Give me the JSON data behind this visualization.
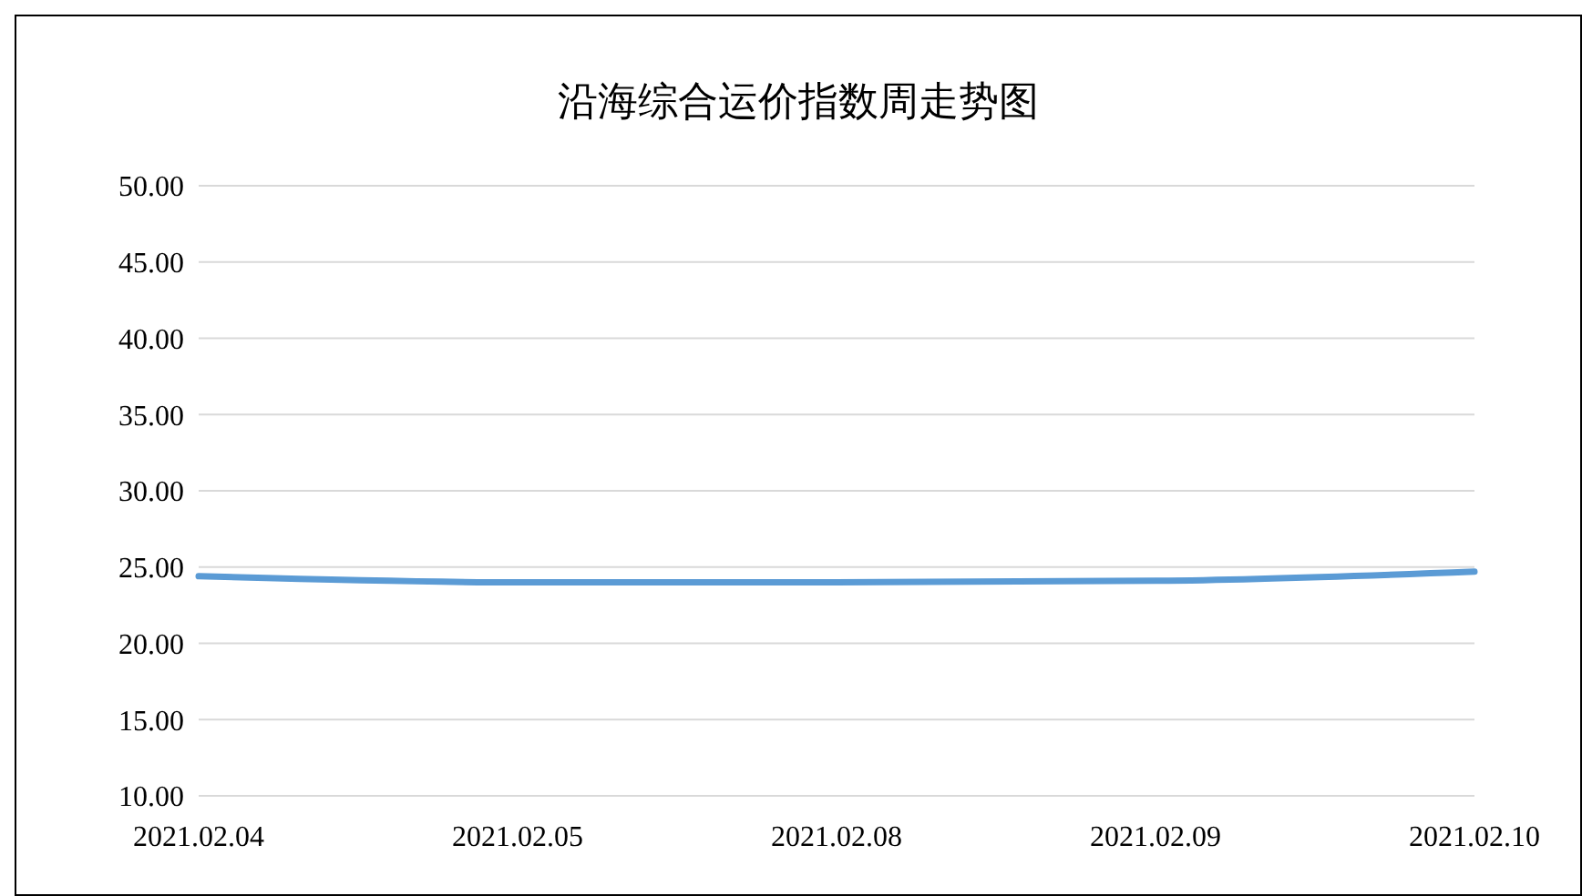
{
  "chart_data": {
    "type": "line",
    "title": "沿海综合运价指数周走势图",
    "categories": [
      "2021.02.04",
      "2021.02.05",
      "2021.02.08",
      "2021.02.09",
      "2021.02.10"
    ],
    "series": [
      {
        "color": "#5b9bd5",
        "values": [
          24.4,
          24.0,
          24.0,
          24.1,
          24.7
        ]
      }
    ],
    "ylim": [
      10,
      50
    ],
    "yticks": [
      {
        "value": 10,
        "label": "10.00"
      },
      {
        "value": 15,
        "label": "15.00"
      },
      {
        "value": 20,
        "label": "20.00"
      },
      {
        "value": 25,
        "label": "25.00"
      },
      {
        "value": 30,
        "label": "30.00"
      },
      {
        "value": 35,
        "label": "35.00"
      },
      {
        "value": 40,
        "label": "40.00"
      },
      {
        "value": 45,
        "label": "45.00"
      },
      {
        "value": 50,
        "label": "50.00"
      }
    ],
    "grid": "y",
    "legend": false,
    "marker": "none",
    "line_style": "solid"
  }
}
